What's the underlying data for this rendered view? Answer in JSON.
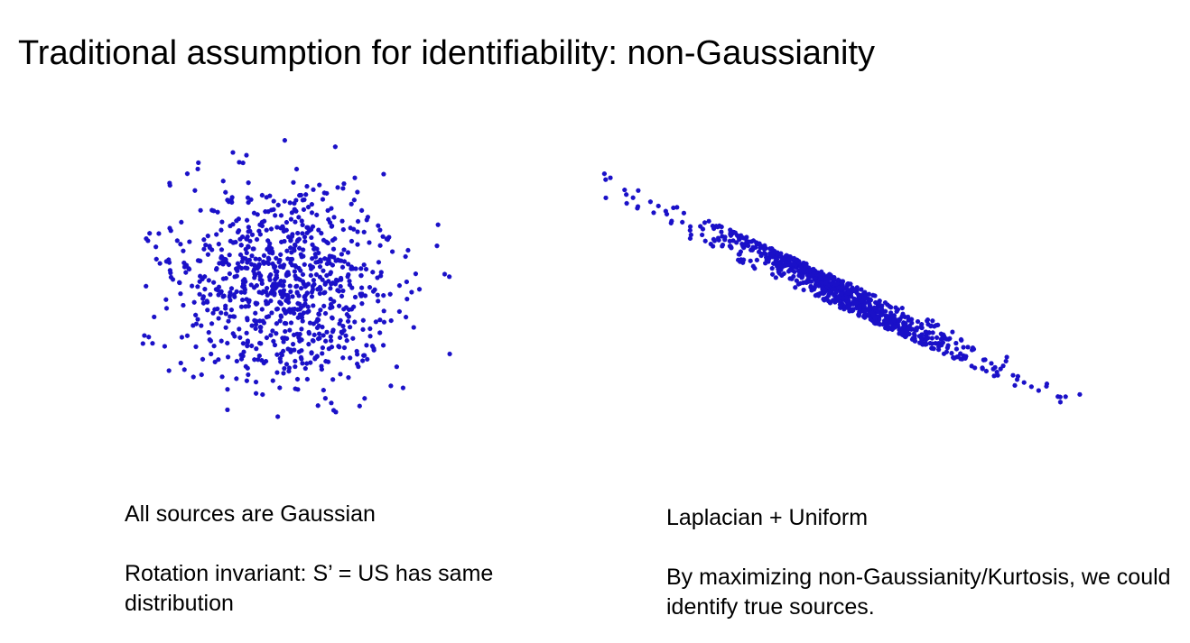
{
  "slide": {
    "title": "Traditional assumption for identifiability: non-Gaussianity"
  },
  "left_panel": {
    "caption_1": "All sources are Gaussian",
    "caption_2": "Rotation invariant: S’ = US has same distribution"
  },
  "right_panel": {
    "caption_1": "Laplacian + Uniform",
    "caption_2": "By maximizing non-Gaussianity/Kurtosis, we could identify true sources."
  },
  "colors": {
    "point": "#1a10c8",
    "text": "#000000",
    "background": "#ffffff"
  },
  "scatter_left": {
    "distribution": "gaussian",
    "marker": "star",
    "point_count": 900
  },
  "scatter_right": {
    "distribution": "laplacian + uniform (rotated)",
    "marker": "star",
    "point_count": 900
  }
}
